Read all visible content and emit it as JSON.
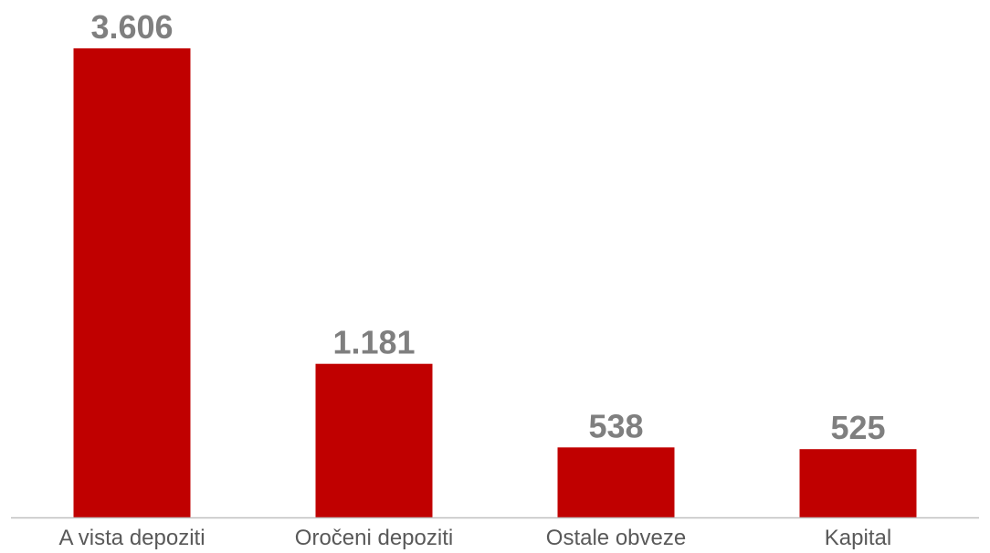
{
  "chart_data": {
    "type": "bar",
    "categories": [
      "A vista depoziti",
      "Oročeni depoziti",
      "Ostale obveze",
      "Kapital"
    ],
    "values": [
      3606,
      1181,
      538,
      525
    ],
    "data_labels": [
      "3.606",
      "1.181",
      "538",
      "525"
    ],
    "title": "",
    "xlabel": "",
    "ylabel": "",
    "ylim": [
      0,
      3606
    ],
    "grid": false,
    "legend": "none"
  },
  "colors": {
    "bar": "#c00000",
    "value_label": "#7f7f7f",
    "category_label": "#595959",
    "axis": "#bfbfbf"
  }
}
